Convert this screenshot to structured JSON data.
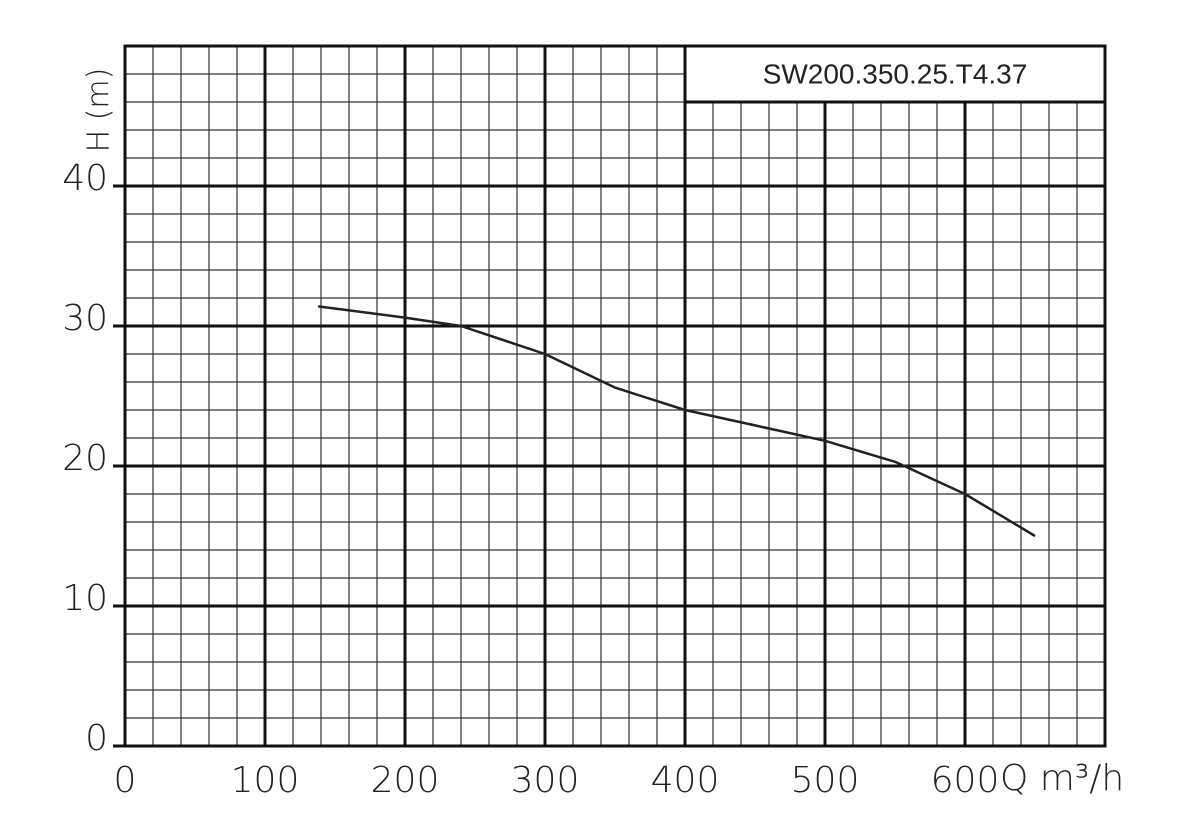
{
  "chart_data": {
    "type": "line",
    "legend_box": "SW200.350.25.T4.37",
    "y_label": "H (m)",
    "x_label": "Q m³/h",
    "x": [
      138,
      200,
      240,
      300,
      350,
      400,
      450,
      500,
      550,
      600,
      650
    ],
    "series": [
      {
        "name": "SW200.350.25.T4.37",
        "color": "#222222",
        "values": [
          31.4,
          30.6,
          30.0,
          28.0,
          25.6,
          24.0,
          22.9,
          21.8,
          20.3,
          18.0,
          15.0
        ]
      }
    ],
    "xlim": [
      0,
      700
    ],
    "ylim": [
      0,
      50
    ],
    "xticks": [
      0,
      100,
      200,
      300,
      400,
      500,
      600
    ],
    "yticks": [
      0,
      10,
      20,
      30,
      40
    ],
    "grid": true
  }
}
